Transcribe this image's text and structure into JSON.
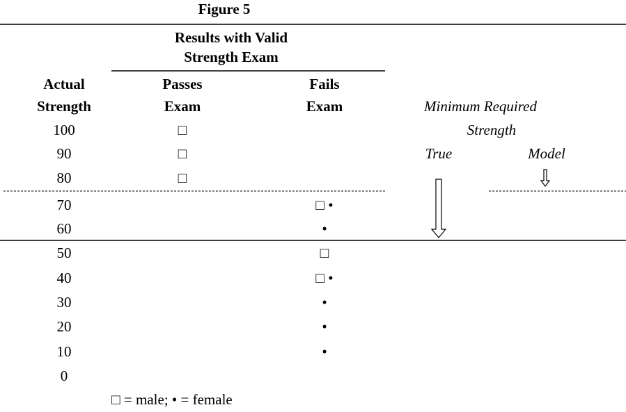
{
  "figure": {
    "title": "Figure 5",
    "group_header": [
      "Results with Valid",
      "Strength Exam"
    ],
    "columns": {
      "actual": [
        "Actual",
        "Strength"
      ],
      "passes": [
        "Passes",
        "Exam"
      ],
      "fails": [
        "Fails",
        "Exam"
      ]
    },
    "minimum": {
      "title": [
        "Minimum Required",
        "Strength"
      ],
      "true": "True",
      "model": "Model"
    },
    "rows": [
      {
        "strength": "100",
        "passes": "□"
      },
      {
        "strength": "90",
        "passes": "□"
      },
      {
        "strength": "80",
        "passes": "□"
      },
      {
        "strength": "70",
        "fails": "□ •"
      },
      {
        "strength": "60",
        "fails": "•"
      },
      {
        "strength": "50",
        "fails": "□"
      },
      {
        "strength": "40",
        "fails": "□ •"
      },
      {
        "strength": "30",
        "fails": "•"
      },
      {
        "strength": "20",
        "fails": "•"
      },
      {
        "strength": "10",
        "fails": "•"
      },
      {
        "strength": "0"
      }
    ],
    "legend": "□ = male; • = female"
  }
}
